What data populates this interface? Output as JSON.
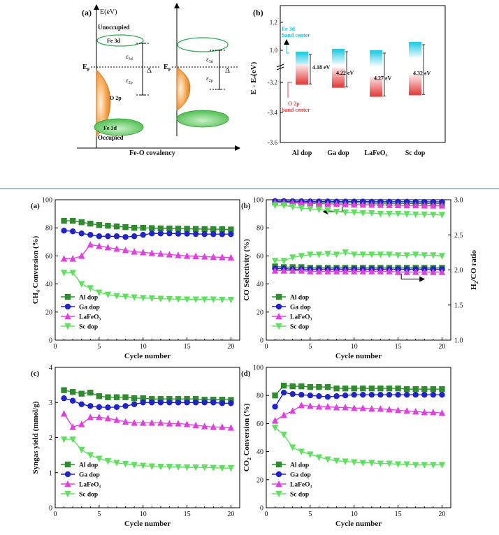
{
  "top": {
    "panel_a": {
      "label": "(a)",
      "y_axis": "E(eV)",
      "unoccupied": "Unoccupied",
      "occupied": "Occupied",
      "fe3d_top": "Fe 3d",
      "fe3d_bottom": "Fe 3d",
      "o2p": "O 2p",
      "ef_left": "E",
      "ef_right": "E",
      "ef_sub": "F",
      "eps": "ε",
      "eps3d_sub": "3d",
      "eps2p_sub": "2p",
      "delta": "Δ",
      "xlabel": "Fe-O covalency"
    },
    "panel_b": {
      "label": "(b)",
      "ylabel": "E - E  (eV)",
      "ylabel_sub": "F",
      "ticks_upper": [
        "1.2",
        "1.0"
      ],
      "ticks_lower": [
        "-3.2",
        "-3.4",
        "-3.6"
      ],
      "fe_label_1": "Fe 3d",
      "fe_label_2": "band center",
      "o_label_1": "O 2p",
      "o_label_2": "band center",
      "categories": [
        "Al dop",
        "Ga dop",
        "LaFeO₃",
        "Sc dop"
      ],
      "gaps": [
        "4.18 eV",
        "4.22 eV",
        "4.27 eV",
        "4.32 eV"
      ],
      "fe3d_center": [
        0.97,
        0.99,
        0.98,
        1.04
      ],
      "o2p_center": [
        -3.21,
        -3.23,
        -3.29,
        -3.28
      ],
      "colors": {
        "fe": "#2fd3e6",
        "o": "#e04848"
      }
    }
  },
  "chart_data": [
    {
      "type": "line",
      "panel": "(a)",
      "title": "",
      "xlabel": "Cycle number",
      "ylabel": "CH4 Conversion (%)",
      "ylabel_main": "CH",
      "ylabel_sub": "4",
      "ylabel_rest": " Conversion (%)",
      "xlim": [
        0,
        21
      ],
      "ylim": [
        0,
        100
      ],
      "xticks": [
        0,
        5,
        10,
        15,
        20
      ],
      "yticks": [
        0,
        20,
        40,
        60,
        80,
        100
      ],
      "x": [
        1,
        2,
        3,
        4,
        5,
        6,
        7,
        8,
        9,
        10,
        11,
        12,
        13,
        14,
        15,
        16,
        17,
        18,
        19,
        20
      ],
      "legend": "bottom-left",
      "series": [
        {
          "name": "Al dop",
          "color": "#2e8b2e",
          "marker": "square",
          "values": [
            85,
            85,
            84,
            83,
            82,
            81.5,
            81,
            80.5,
            80,
            80,
            79.8,
            79.6,
            79.5,
            79.4,
            79.3,
            79.2,
            79.1,
            79,
            79,
            78.8
          ]
        },
        {
          "name": "Ga dop",
          "color": "#1f23c9",
          "marker": "circle",
          "values": [
            78,
            77.5,
            76,
            75,
            74,
            74,
            74,
            73.5,
            74,
            75,
            76,
            76,
            76,
            75.8,
            75.8,
            75.6,
            75.5,
            75.5,
            75.5,
            75.5
          ]
        },
        {
          "name": "LaFeO₃",
          "color": "#e040e0",
          "marker": "triangle-up",
          "values": [
            58,
            58,
            60,
            68,
            67,
            66,
            65,
            64,
            63,
            62.5,
            62,
            61.5,
            61,
            60.5,
            60,
            59.8,
            59.5,
            59.2,
            59,
            58.8
          ]
        },
        {
          "name": "Sc dop",
          "color": "#5fe05f",
          "marker": "triangle-down",
          "values": [
            48,
            48,
            40,
            37,
            34,
            32.5,
            31.5,
            31,
            30.5,
            30,
            29.8,
            29.5,
            29.3,
            29.2,
            29,
            29,
            29,
            29,
            28.8,
            28.8
          ]
        }
      ]
    },
    {
      "type": "line",
      "panel": "(b)",
      "title": "",
      "xlabel": "Cycle number",
      "ylabel": "CO Selectivity (%)",
      "ylabel_right": "H2/CO ratio",
      "ylabel_right_main": "H",
      "ylabel_right_sub": "2",
      "ylabel_right_rest": "/CO ratio",
      "xlim": [
        0,
        21
      ],
      "ylim": [
        0,
        100
      ],
      "ylim_right": [
        1.0,
        3.0
      ],
      "xticks": [
        0,
        5,
        10,
        15,
        20
      ],
      "yticks": [
        0,
        20,
        40,
        60,
        80,
        100
      ],
      "yticks_right": [
        1.0,
        1.5,
        2.0,
        2.5,
        3.0
      ],
      "x": [
        1,
        2,
        3,
        4,
        5,
        6,
        7,
        8,
        9,
        10,
        11,
        12,
        13,
        14,
        15,
        16,
        17,
        18,
        19,
        20
      ],
      "legend": "bottom-left",
      "series": [
        {
          "name": "Al dop",
          "color": "#2e8b2e",
          "marker": "square",
          "axis": "left",
          "values": [
            98.5,
            98.4,
            98.3,
            98.2,
            98.1,
            98,
            97.9,
            97.8,
            97.8,
            97.7,
            97.7,
            97.6,
            97.5,
            97.5,
            97.4,
            97.4,
            97.3,
            97.3,
            97.2,
            97.2
          ]
        },
        {
          "name": "Ga dop",
          "color": "#1f23c9",
          "marker": "circle",
          "axis": "left",
          "values": [
            99,
            99,
            98.9,
            98.9,
            98.8,
            98.8,
            98.8,
            98.7,
            98.7,
            98.7,
            98.7,
            98.6,
            98.6,
            98.6,
            98.6,
            98.6,
            98.5,
            98.5,
            98.5,
            98.5
          ]
        },
        {
          "name": "LaFeO₃",
          "color": "#e040e0",
          "marker": "triangle-up",
          "axis": "left",
          "values": [
            98,
            98,
            97.8,
            97.6,
            97.4,
            97.2,
            97,
            96.9,
            96.8,
            96.6,
            96.5,
            96.4,
            96.3,
            96.2,
            96.1,
            96,
            96,
            95.9,
            95.8,
            95.8
          ]
        },
        {
          "name": "Sc dop",
          "color": "#5fe05f",
          "marker": "triangle-down",
          "axis": "left",
          "values": [
            96,
            96,
            95,
            94,
            93.5,
            93,
            92.5,
            91.5,
            91,
            91,
            90.5,
            90.5,
            90,
            90,
            90,
            89.8,
            89.6,
            89.5,
            89.3,
            89.2
          ]
        },
        {
          "name": "Al dop",
          "color": "#2e8b2e",
          "marker": "square",
          "axis": "right",
          "values": [
            2.05,
            2.04,
            2.04,
            2.04,
            2.03,
            2.03,
            2.03,
            2.03,
            2.03,
            2.03,
            2.03,
            2.03,
            2.03,
            2.03,
            2.03,
            2.03,
            2.03,
            2.03,
            2.03,
            2.03
          ]
        },
        {
          "name": "Ga dop",
          "color": "#1f23c9",
          "marker": "circle",
          "axis": "right",
          "values": [
            2.02,
            2.02,
            2.01,
            2.01,
            2.01,
            2.01,
            2.01,
            2.01,
            2.01,
            2.01,
            2.01,
            2.01,
            2.01,
            2.01,
            2.01,
            2.01,
            2.01,
            2.01,
            2.01,
            2.01
          ]
        },
        {
          "name": "LaFeO₃",
          "color": "#e040e0",
          "marker": "triangle-up",
          "axis": "right",
          "values": [
            1.99,
            1.99,
            1.99,
            1.99,
            1.98,
            1.98,
            1.98,
            1.98,
            1.98,
            1.98,
            1.98,
            1.98,
            1.98,
            1.98,
            1.97,
            1.97,
            1.97,
            1.97,
            1.97,
            1.97
          ]
        },
        {
          "name": "Sc dop",
          "color": "#5fe05f",
          "marker": "triangle-down",
          "axis": "right",
          "values": [
            2.13,
            2.13,
            2.18,
            2.2,
            2.22,
            2.22,
            2.23,
            2.22,
            2.25,
            2.22,
            2.22,
            2.22,
            2.22,
            2.22,
            2.21,
            2.21,
            2.22,
            2.21,
            2.21,
            2.2
          ]
        }
      ]
    },
    {
      "type": "line",
      "panel": "(c)",
      "title": "",
      "xlabel": "Cycle number",
      "ylabel": "Syngas yield (mmol/g)",
      "xlim": [
        0,
        21
      ],
      "ylim": [
        0,
        4
      ],
      "xticks": [
        0,
        5,
        10,
        15,
        20
      ],
      "yticks": [
        0,
        1,
        2,
        3,
        4
      ],
      "x": [
        1,
        2,
        3,
        4,
        5,
        6,
        7,
        8,
        9,
        10,
        11,
        12,
        13,
        14,
        15,
        16,
        17,
        18,
        19,
        20
      ],
      "legend": "bottom-left",
      "series": [
        {
          "name": "Al dop",
          "color": "#2e8b2e",
          "marker": "square",
          "values": [
            3.35,
            3.3,
            3.25,
            3.28,
            3.18,
            3.15,
            3.15,
            3.15,
            3.12,
            3.12,
            3.1,
            3.1,
            3.1,
            3.1,
            3.1,
            3.1,
            3.08,
            3.08,
            3.08,
            3.07
          ]
        },
        {
          "name": "Ga dop",
          "color": "#1f23c9",
          "marker": "circle",
          "values": [
            3.12,
            3.05,
            2.95,
            2.9,
            2.87,
            2.86,
            2.87,
            2.9,
            2.95,
            3.0,
            3.0,
            3.0,
            3.0,
            3.0,
            3.0,
            3.0,
            3.0,
            3.0,
            2.98,
            2.98
          ]
        },
        {
          "name": "LaFeO₃",
          "color": "#e040e0",
          "marker": "triangle-up",
          "values": [
            2.68,
            2.3,
            2.38,
            2.58,
            2.58,
            2.55,
            2.5,
            2.45,
            2.42,
            2.42,
            2.42,
            2.42,
            2.4,
            2.4,
            2.38,
            2.35,
            2.32,
            2.3,
            2.3,
            2.28
          ]
        },
        {
          "name": "Sc dop",
          "color": "#5fe05f",
          "marker": "triangle-down",
          "values": [
            1.95,
            1.95,
            1.65,
            1.5,
            1.4,
            1.33,
            1.28,
            1.25,
            1.22,
            1.2,
            1.18,
            1.17,
            1.17,
            1.16,
            1.15,
            1.15,
            1.15,
            1.14,
            1.13,
            1.13
          ]
        }
      ]
    },
    {
      "type": "line",
      "panel": "(d)",
      "title": "",
      "xlabel": "Cycle number",
      "ylabel": "CO2 Conversion (%)",
      "ylabel_main": "CO",
      "ylabel_sub": "2",
      "ylabel_rest": " Conversion (%)",
      "xlim": [
        0,
        21
      ],
      "ylim": [
        0,
        100
      ],
      "xticks": [
        0,
        5,
        10,
        15,
        20
      ],
      "yticks": [
        0,
        20,
        40,
        60,
        80,
        100
      ],
      "x": [
        1,
        2,
        3,
        4,
        5,
        6,
        7,
        8,
        9,
        10,
        11,
        12,
        13,
        14,
        15,
        16,
        17,
        18,
        19,
        20
      ],
      "legend": "bottom-left",
      "series": [
        {
          "name": "Al dop",
          "color": "#2e8b2e",
          "marker": "square",
          "values": [
            80,
            87,
            86.5,
            86.5,
            86,
            86,
            86,
            85,
            85,
            85,
            85,
            85,
            85,
            85,
            85,
            84.5,
            84.5,
            84.5,
            84.5,
            84.5
          ]
        },
        {
          "name": "Ga dop",
          "color": "#1f23c9",
          "marker": "circle",
          "values": [
            72,
            82,
            81,
            80.5,
            80,
            79.5,
            79,
            79.5,
            80,
            80.5,
            80.5,
            80.5,
            80.5,
            80.5,
            80.5,
            80.5,
            80.5,
            80.5,
            80.5,
            80.5
          ]
        },
        {
          "name": "LaFeO₃",
          "color": "#e040e0",
          "marker": "triangle-up",
          "values": [
            62,
            66,
            69,
            73,
            72.5,
            72,
            72,
            71.5,
            71.5,
            71,
            71,
            70.5,
            70.5,
            70,
            69.5,
            69,
            68.5,
            68,
            68,
            67.5
          ]
        },
        {
          "name": "Sc dop",
          "color": "#5fe05f",
          "marker": "triangle-down",
          "values": [
            57,
            52,
            43,
            40,
            38,
            36,
            34.5,
            33.5,
            33,
            32.5,
            32,
            32,
            31.5,
            31.5,
            31,
            31,
            30.5,
            30.5,
            30.5,
            30.5
          ]
        }
      ]
    }
  ]
}
